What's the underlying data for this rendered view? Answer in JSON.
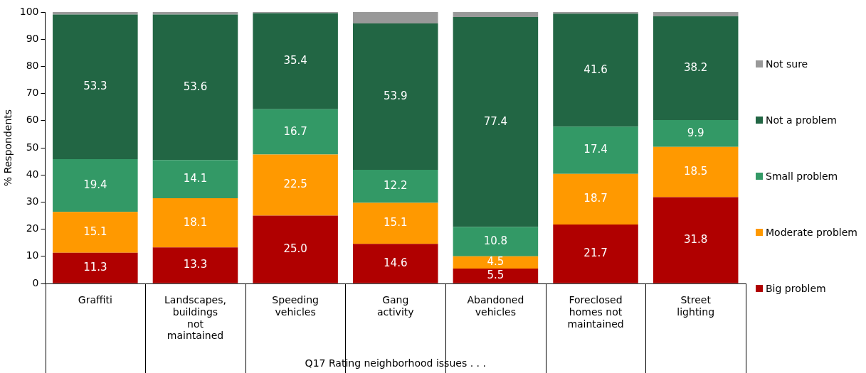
{
  "chart_data": {
    "type": "bar",
    "stacked": true,
    "xlabel": "Q17 Rating neighborhood issues . . .",
    "ylabel": "% Respondents",
    "categories": [
      "Graffiti",
      "Landscapes, buildings not maintained",
      "Speeding vehicles",
      "Gang activity",
      "Abandoned vehicles",
      "Foreclosed homes not maintained",
      "Street lighting"
    ],
    "series": [
      {
        "name": "Big problem",
        "color": "#b00000",
        "values": [
          11.3,
          13.3,
          25.0,
          14.6,
          5.5,
          21.7,
          31.8
        ],
        "value_labels": [
          "11.3",
          "13.3",
          "25.0",
          "14.6",
          "5.5",
          "21.7",
          "31.8"
        ]
      },
      {
        "name": "Moderate problem",
        "color": "#ff9900",
        "values": [
          15.1,
          18.1,
          22.5,
          15.1,
          4.5,
          18.7,
          18.5
        ],
        "value_labels": [
          "15.1",
          "18.1",
          "22.5",
          "15.1",
          "4.5",
          "18.7",
          "18.5"
        ]
      },
      {
        "name": "Small problem",
        "color": "#339966",
        "values": [
          19.4,
          14.1,
          16.7,
          12.2,
          10.8,
          17.4,
          9.9
        ],
        "value_labels": [
          "19.4",
          "14.1",
          "16.7",
          "12.2",
          "10.8",
          "17.4",
          "9.9"
        ]
      },
      {
        "name": "Not a problem",
        "color": "#226644",
        "values": [
          53.3,
          53.6,
          35.4,
          53.9,
          77.4,
          41.6,
          38.2
        ],
        "value_labels": [
          "53.3",
          "53.6",
          "35.4",
          "53.9",
          "77.4",
          "41.6",
          "38.2"
        ]
      },
      {
        "name": "Not sure",
        "color": "#999999",
        "values": [
          0.9,
          0.9,
          0.4,
          4.2,
          1.8,
          0.6,
          1.6
        ]
      }
    ],
    "ylim": [
      0,
      100
    ],
    "yticks": [
      0,
      10,
      20,
      30,
      40,
      50,
      60,
      70,
      80,
      90,
      100
    ],
    "grid": false,
    "legend": "right"
  }
}
